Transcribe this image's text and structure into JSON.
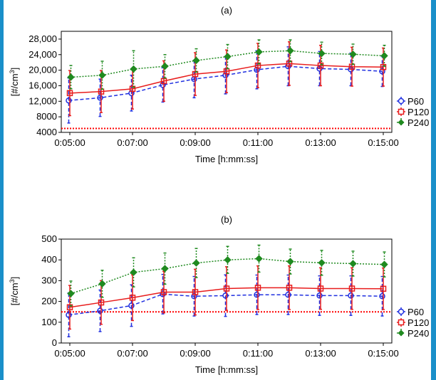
{
  "chart_data": [
    {
      "type": "line",
      "title": "(a)",
      "xlabel": "Time [h:mm:ss]",
      "ylabel": "[#/cm³]",
      "ylabel_base": "[#/cm",
      "ylabel_sup": "3",
      "ylabel_end": "]",
      "x": [
        "0:05:00",
        "0:06:00",
        "0:07:00",
        "0:08:00",
        "0:09:00",
        "0:10:00",
        "0:11:00",
        "0:12:00",
        "0:13:00",
        "0:14:00",
        "0:15:00"
      ],
      "xticks": [
        "0:05:00",
        "0:07:00",
        "0:09:00",
        "0:11:00",
        "0:13:00",
        "0:15:00"
      ],
      "yticks": [
        "4000",
        "8000",
        "12,000",
        "16,000",
        "20,000",
        "24,000",
        "28,000"
      ],
      "ylim": [
        4000,
        30000
      ],
      "reference_line": 5000,
      "legend_position": "right",
      "grid": false,
      "series": [
        {
          "name": "P60",
          "color": "#1f2fe0",
          "marker": "circle",
          "dash": "dashed",
          "values": [
            12200,
            12900,
            14100,
            16200,
            17700,
            18700,
            20100,
            21000,
            20400,
            20200,
            19700
          ],
          "err": [
            5800,
            4800,
            4600,
            4400,
            4800,
            4800,
            4900,
            5000,
            4400,
            4200,
            3900
          ]
        },
        {
          "name": "P120",
          "color": "#e81c1c",
          "marker": "square",
          "dash": "solid",
          "values": [
            14100,
            14500,
            15200,
            17200,
            19000,
            19700,
            21200,
            21700,
            21200,
            20900,
            20800
          ],
          "err": [
            5800,
            5400,
            5200,
            5200,
            5500,
            5500,
            5700,
            5600,
            5200,
            5000,
            4900
          ]
        },
        {
          "name": "P240",
          "color": "#1f8a1f",
          "marker": "diamond",
          "dash": "dotted",
          "values": [
            18200,
            18700,
            20300,
            21000,
            22500,
            23500,
            24700,
            25000,
            24300,
            24100,
            23700
          ],
          "err": [
            3000,
            3600,
            4700,
            3000,
            3000,
            3100,
            3100,
            2800,
            2900,
            2600,
            2700
          ]
        }
      ]
    },
    {
      "type": "line",
      "title": "(b)",
      "xlabel": "Time [h:mm:ss]",
      "ylabel": "[#/cm³]",
      "ylabel_base": "[#/cm",
      "ylabel_sup": "3",
      "ylabel_end": "]",
      "x": [
        "0:05:00",
        "0:06:00",
        "0:07:00",
        "0:08:00",
        "0:09:00",
        "0:10:00",
        "0:11:00",
        "0:12:00",
        "0:13:00",
        "0:14:00",
        "0:15:00"
      ],
      "xticks": [
        "0:05:00",
        "0:07:00",
        "0:09:00",
        "0:11:00",
        "0:13:00",
        "0:15:00"
      ],
      "yticks": [
        "0",
        "100",
        "200",
        "300",
        "400",
        "500"
      ],
      "ylim": [
        0,
        500
      ],
      "reference_line": 150,
      "legend_position": "right",
      "grid": false,
      "series": [
        {
          "name": "P60",
          "color": "#1f2fe0",
          "marker": "circle",
          "dash": "dashed",
          "values": [
            135,
            155,
            180,
            235,
            225,
            228,
            232,
            232,
            228,
            228,
            225
          ],
          "err": [
            105,
            100,
            100,
            95,
            95,
            100,
            95,
            95,
            95,
            95,
            95
          ]
        },
        {
          "name": "P120",
          "color": "#e81c1c",
          "marker": "square",
          "dash": "solid",
          "values": [
            172,
            195,
            218,
            245,
            245,
            262,
            266,
            266,
            262,
            262,
            261
          ],
          "err": [
            105,
            105,
            110,
            100,
            110,
            105,
            105,
            105,
            100,
            100,
            100
          ]
        },
        {
          "name": "P240",
          "color": "#1f8a1f",
          "marker": "diamond",
          "dash": "dotted",
          "values": [
            238,
            285,
            340,
            358,
            385,
            400,
            406,
            392,
            386,
            382,
            378
          ],
          "err": [
            60,
            65,
            70,
            75,
            70,
            65,
            65,
            60,
            60,
            60,
            60
          ]
        }
      ]
    }
  ]
}
